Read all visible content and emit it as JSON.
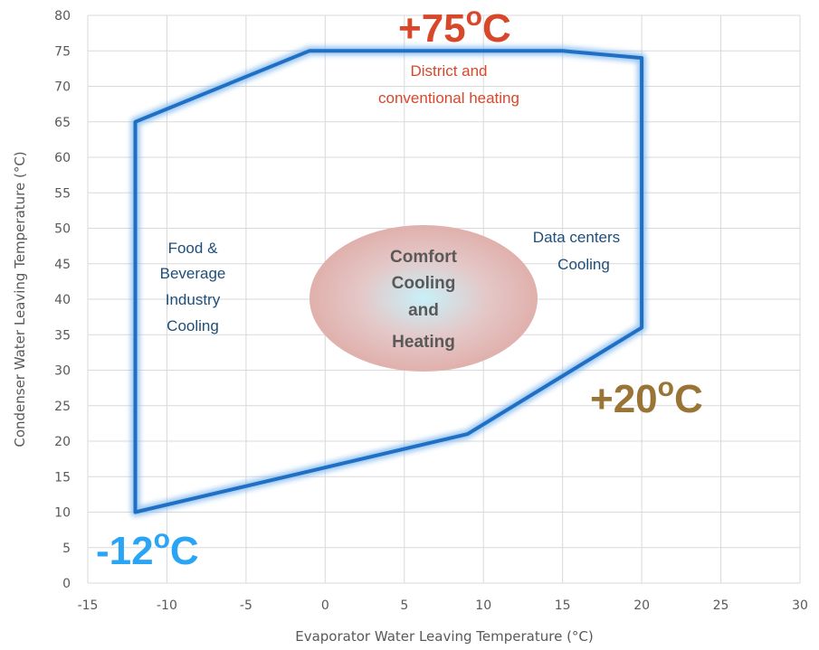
{
  "chart_data": {
    "type": "line",
    "xlabel": "Evaporator Water Leaving Temperature (°C)",
    "ylabel": "Condenser Water Leaving Temperature (°C)",
    "xlim": [
      -15,
      30
    ],
    "ylim": [
      0,
      80
    ],
    "x_ticks": [
      "-15",
      "-10",
      "-5",
      "0",
      "5",
      "10",
      "15",
      "20",
      "25",
      "30"
    ],
    "y_ticks": [
      "0",
      "5",
      "10",
      "15",
      "20",
      "25",
      "30",
      "35",
      "40",
      "45",
      "50",
      "55",
      "60",
      "65",
      "70",
      "75",
      "80"
    ],
    "grid": true,
    "envelope": {
      "x": [
        -12,
        -12,
        -1,
        15,
        20,
        20,
        9,
        -12
      ],
      "y": [
        10,
        65,
        75,
        75,
        74,
        36,
        21,
        10
      ],
      "color": "#1f6fc4"
    },
    "annotations": {
      "top_limit": {
        "value": "+75",
        "unit": "C",
        "color": "#d9472b"
      },
      "right_limit": {
        "value": "+20",
        "unit": "C",
        "color": "#9a7434"
      },
      "bottom_limit": {
        "value": "-12",
        "unit": "C",
        "color": "#2aa4f4"
      },
      "district_line1": "District and",
      "district_line2": "conventional heating",
      "food_line1": "Food &",
      "food_line2": "Beverage",
      "food_line3": "Industry",
      "food_line4": "Cooling",
      "data_line1": "Data centers",
      "data_line2": "Cooling",
      "comfort_line1": "Comfort",
      "comfort_line2": "Cooling",
      "comfort_line3": "and",
      "comfort_line4": "Heating"
    }
  }
}
